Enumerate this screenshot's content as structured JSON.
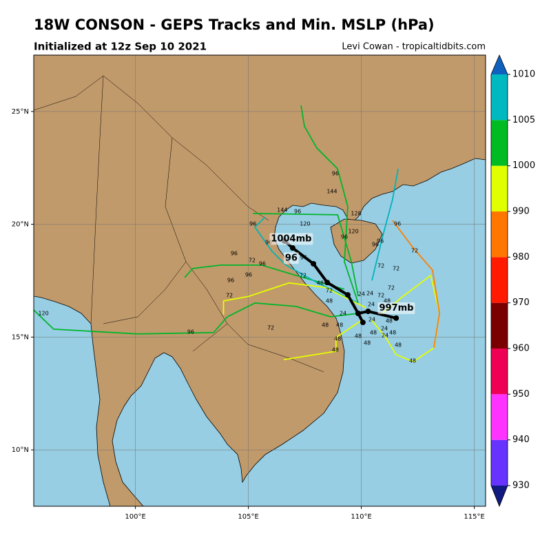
{
  "chart_data": {
    "type": "map",
    "title": "18W CONSON - GEPS Tracks and Min. MSLP (hPa)",
    "subtitle": "Initialized at 12z Sep 10 2021",
    "credit": "Levi Cowan - tropicaltidbits.com",
    "xlim": [
      95.5,
      115.5
    ],
    "ylim": [
      7.5,
      27.5
    ],
    "xticks": [
      {
        "value": 100,
        "label": "100°E"
      },
      {
        "value": 105,
        "label": "105°E"
      },
      {
        "value": 110,
        "label": "110°E"
      },
      {
        "value": 115,
        "label": "115°E"
      }
    ],
    "yticks": [
      {
        "value": 10,
        "label": "10°N"
      },
      {
        "value": 15,
        "label": "15°N"
      },
      {
        "value": 20,
        "label": "20°N"
      },
      {
        "value": 25,
        "label": "25°N"
      }
    ],
    "grid": true,
    "tracks": [
      {
        "color": "#e5ff00",
        "lon": [
          110.93,
          111.85,
          113.07,
          113.46,
          113.22
        ],
        "lat": [
          16.05,
          16.81,
          17.73,
          16.05,
          14.52
        ]
      },
      {
        "color": "#00b52a",
        "lon": [
          109.86,
          109.25,
          109.4,
          108.95,
          108.03,
          107.48,
          107.33
        ],
        "lat": [
          16.51,
          18.34,
          20.78,
          22.46,
          23.38,
          24.35,
          25.27
        ]
      },
      {
        "color": "#00b3b8",
        "lon": [
          110.47,
          110.93,
          111.38,
          111.63
        ],
        "lat": [
          17.51,
          19.41,
          21.09,
          22.46
        ]
      },
      {
        "color": "#00b52a",
        "lon": [
          109.86,
          108.64,
          107.11,
          105.29,
          104.07,
          103.46,
          100.1,
          96.38,
          95.5
        ],
        "lat": [
          16.05,
          15.9,
          16.36,
          16.51,
          15.9,
          15.2,
          15.14,
          15.35,
          16.2
        ]
      },
      {
        "color": "#e5ff00",
        "lon": [
          110.01,
          108.88,
          108.88,
          106.57
        ],
        "lat": [
          15.74,
          14.98,
          14.37,
          14.0
        ]
      },
      {
        "color": "#00b52a",
        "lon": [
          109.25,
          107.12,
          105.59,
          103.76,
          102.54,
          102.18
        ],
        "lat": [
          17.12,
          17.73,
          18.19,
          18.19,
          18.04,
          17.64
        ]
      },
      {
        "color": "#e5ff00",
        "lon": [
          110.47,
          111.08,
          111.54,
          112.3,
          113.21
        ],
        "lat": [
          15.74,
          14.98,
          14.22,
          13.91,
          14.52
        ]
      },
      {
        "color": "#ff7f00",
        "lon": [
          111.38,
          112.3,
          113.15,
          113.46,
          113.21
        ],
        "lat": [
          20.17,
          18.95,
          17.97,
          16.05,
          14.52
        ]
      },
      {
        "color": "#00b3b8",
        "lon": [
          109.86,
          108.03,
          106.66,
          106.05,
          105.29,
          105.74
        ],
        "lat": [
          16.51,
          17.42,
          18.19,
          18.8,
          19.87,
          20.32
        ]
      },
      {
        "color": "#00b52a",
        "lon": [
          105.2,
          108.95,
          109.56,
          109.86
        ],
        "lat": [
          20.48,
          20.42,
          18.34,
          16.81
        ]
      },
      {
        "color": "#e5ff00",
        "lon": [
          110.2,
          108.4,
          106.8,
          105.0,
          103.9,
          103.9
        ],
        "lat": [
          16.3,
          17.2,
          17.4,
          16.8,
          16.6,
          16.0
        ]
      }
    ],
    "mean_tracks": [
      {
        "color": "#000000",
        "lon": [
          106.6,
          106.96,
          107.88,
          108.49,
          109.4,
          109.86,
          110.07
        ],
        "lat": [
          19.26,
          18.95,
          18.25,
          17.42,
          16.87,
          16.05,
          15.65
        ]
      },
      {
        "color": "#000000",
        "lon": [
          109.86,
          110.3,
          111.54
        ],
        "lat": [
          16.05,
          16.14,
          15.84
        ]
      }
    ],
    "annotations": [
      {
        "text": "1004mb",
        "lon": 106.9,
        "lat": 19.35
      },
      {
        "text": "96",
        "lon": 106.9,
        "lat": 18.5
      },
      {
        "text": "997mb",
        "lon": 111.55,
        "lat": 16.28
      }
    ],
    "hour_labels": [
      {
        "text": "96",
        "lon": 108.85,
        "lat": 22.25
      },
      {
        "text": "144",
        "lon": 108.7,
        "lat": 21.45
      },
      {
        "text": "128",
        "lon": 109.77,
        "lat": 20.48
      },
      {
        "text": "120",
        "lon": 107.51,
        "lat": 20.02
      },
      {
        "text": "144",
        "lon": 106.5,
        "lat": 20.63
      },
      {
        "text": "96",
        "lon": 105.2,
        "lat": 20.02
      },
      {
        "text": "96",
        "lon": 107.18,
        "lat": 20.57
      },
      {
        "text": "120",
        "lon": 109.65,
        "lat": 19.68
      },
      {
        "text": "96",
        "lon": 111.6,
        "lat": 20.02
      },
      {
        "text": "72",
        "lon": 112.36,
        "lat": 18.83
      },
      {
        "text": "72",
        "lon": 110.87,
        "lat": 18.16
      },
      {
        "text": "72",
        "lon": 111.54,
        "lat": 18.04
      },
      {
        "text": "96",
        "lon": 109.25,
        "lat": 19.44
      },
      {
        "text": "96",
        "lon": 104.37,
        "lat": 18.71
      },
      {
        "text": "72",
        "lon": 105.16,
        "lat": 18.4
      },
      {
        "text": "96",
        "lon": 105.62,
        "lat": 18.25
      },
      {
        "text": "96",
        "lon": 104.22,
        "lat": 17.52
      },
      {
        "text": "96",
        "lon": 105.01,
        "lat": 17.76
      },
      {
        "text": "72",
        "lon": 104.16,
        "lat": 16.84
      },
      {
        "text": "72",
        "lon": 105.99,
        "lat": 15.41
      },
      {
        "text": "96",
        "lon": 102.45,
        "lat": 15.22
      },
      {
        "text": "120",
        "lon": 95.93,
        "lat": 16.05
      },
      {
        "text": "48",
        "lon": 108.18,
        "lat": 17.39
      },
      {
        "text": "48",
        "lon": 108.58,
        "lat": 16.6
      },
      {
        "text": "72",
        "lon": 108.58,
        "lat": 17.06
      },
      {
        "text": "24",
        "lon": 110.01,
        "lat": 16.9
      },
      {
        "text": "24",
        "lon": 110.38,
        "lat": 16.93
      },
      {
        "text": "72",
        "lon": 110.87,
        "lat": 16.84
      },
      {
        "text": "48",
        "lon": 111.14,
        "lat": 16.6
      },
      {
        "text": "72",
        "lon": 111.32,
        "lat": 17.18
      },
      {
        "text": "24",
        "lon": 110.44,
        "lat": 16.45
      },
      {
        "text": "24",
        "lon": 109.19,
        "lat": 16.05
      },
      {
        "text": "48",
        "lon": 108.4,
        "lat": 15.53
      },
      {
        "text": "48",
        "lon": 109.04,
        "lat": 15.53
      },
      {
        "text": "48",
        "lon": 108.95,
        "lat": 14.92
      },
      {
        "text": "48",
        "lon": 108.85,
        "lat": 14.43
      },
      {
        "text": "48",
        "lon": 109.86,
        "lat": 15.04
      },
      {
        "text": "48",
        "lon": 110.53,
        "lat": 15.2
      },
      {
        "text": "48",
        "lon": 110.26,
        "lat": 14.74
      },
      {
        "text": "24",
        "lon": 111.02,
        "lat": 15.38
      },
      {
        "text": "48",
        "lon": 111.39,
        "lat": 15.2
      },
      {
        "text": "24",
        "lon": 111.05,
        "lat": 15.07
      },
      {
        "text": "48",
        "lon": 111.63,
        "lat": 14.65
      },
      {
        "text": "48",
        "lon": 112.27,
        "lat": 13.94
      },
      {
        "text": "48",
        "lon": 111.23,
        "lat": 15.71
      },
      {
        "text": "24",
        "lon": 110.47,
        "lat": 15.77
      },
      {
        "text": "72",
        "lon": 107.42,
        "lat": 17.73
      },
      {
        "text": "96",
        "lon": 105.9,
        "lat": 19.2
      },
      {
        "text": "96",
        "lon": 107.45,
        "lat": 18.52
      },
      {
        "text": "96",
        "lon": 110.84,
        "lat": 19.26
      },
      {
        "text": "96",
        "lon": 110.62,
        "lat": 19.1
      }
    ],
    "colorbar": {
      "ticks": [
        930,
        940,
        950,
        960,
        970,
        980,
        990,
        1000,
        1005,
        1010
      ],
      "colors": [
        "#6633ff",
        "#ff33ff",
        "#ee0055",
        "#7a0000",
        "#ff1a00",
        "#ff7700",
        "#e0ff00",
        "#00bb22",
        "#00b8c0"
      ],
      "extend_colors": [
        "#101a80",
        "#1060c0"
      ]
    }
  }
}
